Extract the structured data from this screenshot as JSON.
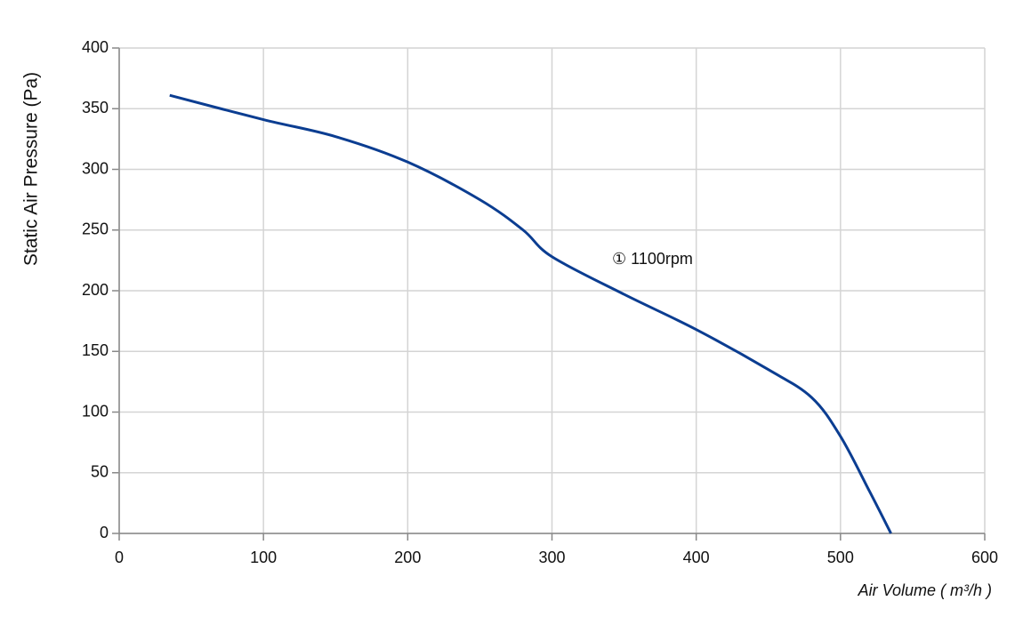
{
  "chart_data": {
    "type": "line",
    "x_label": "Air Volume ( m³/h )",
    "y_label": "Static Air Pressure  (Pa)",
    "annotation": "① 1100rpm",
    "series": [
      {
        "name": "1100rpm",
        "color": "#0b3d91",
        "x": [
          35,
          100,
          150,
          200,
          250,
          280,
          300,
          350,
          400,
          450,
          480,
          500,
          520,
          535
        ],
        "values": [
          361,
          341,
          327,
          306,
          275,
          250,
          228,
          197,
          168,
          135,
          112,
          80,
          35,
          0
        ]
      }
    ],
    "xlim": [
      0,
      600
    ],
    "xticks": [
      0,
      100,
      200,
      300,
      400,
      500,
      600
    ],
    "ylim": [
      0,
      400
    ],
    "yticks": [
      0,
      50,
      100,
      150,
      200,
      250,
      300,
      350,
      400
    ],
    "grid": true
  }
}
